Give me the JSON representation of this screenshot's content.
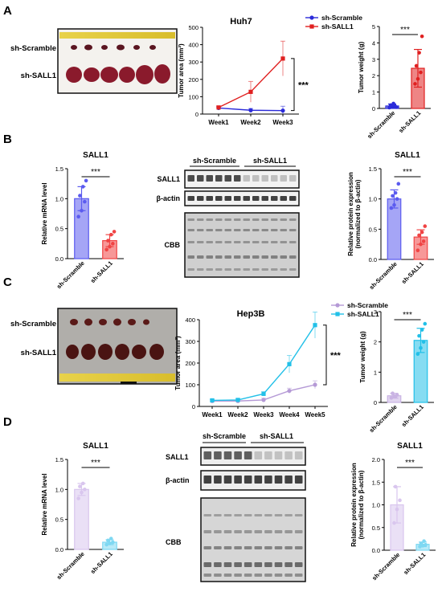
{
  "panels": {
    "A": {
      "letter": "A",
      "photo_labels": [
        "sh-Scramble",
        "sh-SALL1"
      ],
      "line_chart": {
        "type": "line",
        "title": "Huh7",
        "ylabel": "Tumor area (mm²)",
        "categories": [
          "Week1",
          "Week2",
          "Week3"
        ],
        "ylim": [
          0,
          500
        ],
        "yticks": [
          0,
          100,
          200,
          300,
          400,
          500
        ],
        "series": [
          {
            "name": "sh-Scramble",
            "color": "#2b2bd9",
            "values": [
              35,
              22,
              20
            ],
            "errors": [
              5,
              10,
              25
            ]
          },
          {
            "name": "sh-SALL1",
            "color": "#e02020",
            "values": [
              38,
              128,
              320
            ],
            "errors": [
              8,
              60,
              100
            ]
          }
        ],
        "significance": "***"
      },
      "bar_chart": {
        "type": "bar",
        "ylabel": "Tumor weight (g)",
        "categories": [
          "sh-Scramble",
          "sh-SALL1"
        ],
        "ylim": [
          0,
          5
        ],
        "yticks": [
          0,
          1,
          2,
          3,
          4,
          5
        ],
        "values": [
          0.15,
          2.45
        ],
        "errors": [
          0.12,
          1.15
        ],
        "colors": [
          "#2b2bd9",
          "#e02020"
        ],
        "points": [
          [
            0.05,
            0.1,
            0.15,
            0.2,
            0.3,
            0.08
          ],
          [
            1.5,
            1.8,
            2.2,
            2.6,
            3.4,
            4.4
          ]
        ],
        "significance": "***"
      }
    },
    "B": {
      "letter": "B",
      "bar_chart": {
        "type": "bar",
        "title": "SALL1",
        "ylabel": "Relative mRNA level",
        "categories": [
          "sh-Scramble",
          "sh-SALL1"
        ],
        "ylim": [
          0,
          1.5
        ],
        "yticks": [
          0.0,
          0.5,
          1.0,
          1.5
        ],
        "values": [
          1.0,
          0.3
        ],
        "errors": [
          0.2,
          0.1
        ],
        "colors": [
          "#5b5bef",
          "#f04444"
        ],
        "points": [
          [
            0.7,
            0.8,
            0.95,
            1.05,
            1.2,
            1.3
          ],
          [
            0.15,
            0.2,
            0.25,
            0.3,
            0.4,
            0.45
          ]
        ],
        "significance": "***"
      },
      "blot": {
        "group_labels": [
          "sh-Scramble",
          "sh-SALL1"
        ],
        "row_labels": [
          "SALL1",
          "β-actin",
          "CBB"
        ]
      },
      "bar_chart2": {
        "type": "bar",
        "title": "SALL1",
        "ylabel": "Relative protein expression (normalized to β-actin)",
        "categories": [
          "sh-Scramble",
          "sh-SALL1"
        ],
        "ylim": [
          0,
          1.5
        ],
        "yticks": [
          0.0,
          0.5,
          1.0,
          1.5
        ],
        "values": [
          1.0,
          0.37
        ],
        "errors": [
          0.15,
          0.12
        ],
        "colors": [
          "#5b5bef",
          "#f04444"
        ],
        "points": [
          [
            0.85,
            0.9,
            1.0,
            1.05,
            1.1,
            1.25
          ],
          [
            0.15,
            0.25,
            0.3,
            0.4,
            0.45,
            0.55
          ]
        ],
        "significance": "***"
      }
    },
    "C": {
      "letter": "C",
      "photo_labels": [
        "sh-Scramble",
        "sh-SALL1"
      ],
      "line_chart": {
        "type": "line",
        "title": "Hep3B",
        "ylabel": "Tumor area (mm²)",
        "categories": [
          "Week1",
          "Week2",
          "Week3",
          "Week4",
          "Week5"
        ],
        "ylim": [
          0,
          400
        ],
        "yticks": [
          0,
          100,
          200,
          300,
          400
        ],
        "series": [
          {
            "name": "sh-Scramble",
            "color": "#b59ad6",
            "values": [
              25,
              25,
              30,
              72,
              100
            ],
            "errors": [
              5,
              5,
              8,
              12,
              18
            ]
          },
          {
            "name": "sh-SALL1",
            "color": "#22c0e8",
            "values": [
              28,
              30,
              58,
              195,
              375
            ],
            "errors": [
              5,
              6,
              10,
              40,
              60
            ]
          }
        ],
        "significance": "***"
      },
      "bar_chart": {
        "type": "bar",
        "ylabel": "Tumor weight (g)",
        "categories": [
          "sh-Scramble",
          "sh-SALL1"
        ],
        "ylim": [
          0,
          3
        ],
        "yticks": [
          0,
          1,
          2,
          3
        ],
        "values": [
          0.22,
          2.05
        ],
        "errors": [
          0.08,
          0.4
        ],
        "colors": [
          "#c9b3e3",
          "#22c0e8"
        ],
        "points": [
          [
            0.15,
            0.2,
            0.25,
            0.3,
            0.2
          ],
          [
            1.6,
            1.8,
            2.0,
            2.2,
            2.4,
            2.6
          ]
        ],
        "significance": "***"
      }
    },
    "D": {
      "letter": "D",
      "bar_chart": {
        "type": "bar",
        "title": "SALL1",
        "ylabel": "Relative mRNA level",
        "categories": [
          "sh-Scramble",
          "sh-SALL1"
        ],
        "ylim": [
          0,
          1.5
        ],
        "yticks": [
          0.0,
          0.5,
          1.0,
          1.5
        ],
        "values": [
          1.0,
          0.12
        ],
        "errors": [
          0.1,
          0.04
        ],
        "colors": [
          "#d9c6ee",
          "#7ed8f2"
        ],
        "points": [
          [
            0.85,
            0.95,
            1.0,
            1.05,
            1.1
          ],
          [
            0.08,
            0.1,
            0.12,
            0.15,
            0.18
          ]
        ],
        "significance": "***"
      },
      "blot": {
        "group_labels": [
          "sh-Scramble",
          "sh-SALL1"
        ],
        "row_labels": [
          "SALL1",
          "β-actin",
          "CBB"
        ]
      },
      "bar_chart2": {
        "type": "bar",
        "title": "SALL1",
        "ylabel": "Relative protein expression (normalized to β-actin)",
        "categories": [
          "sh-Scramble",
          "sh-SALL1"
        ],
        "ylim": [
          0,
          2.0
        ],
        "yticks": [
          0.0,
          0.5,
          1.0,
          1.5,
          2.0
        ],
        "values": [
          1.0,
          0.13
        ],
        "errors": [
          0.4,
          0.05
        ],
        "colors": [
          "#d9c6ee",
          "#7ed8f2"
        ],
        "points": [
          [
            0.6,
            0.9,
            1.1,
            1.4
          ],
          [
            0.08,
            0.1,
            0.12,
            0.15,
            0.2
          ]
        ],
        "significance": "***"
      }
    }
  }
}
